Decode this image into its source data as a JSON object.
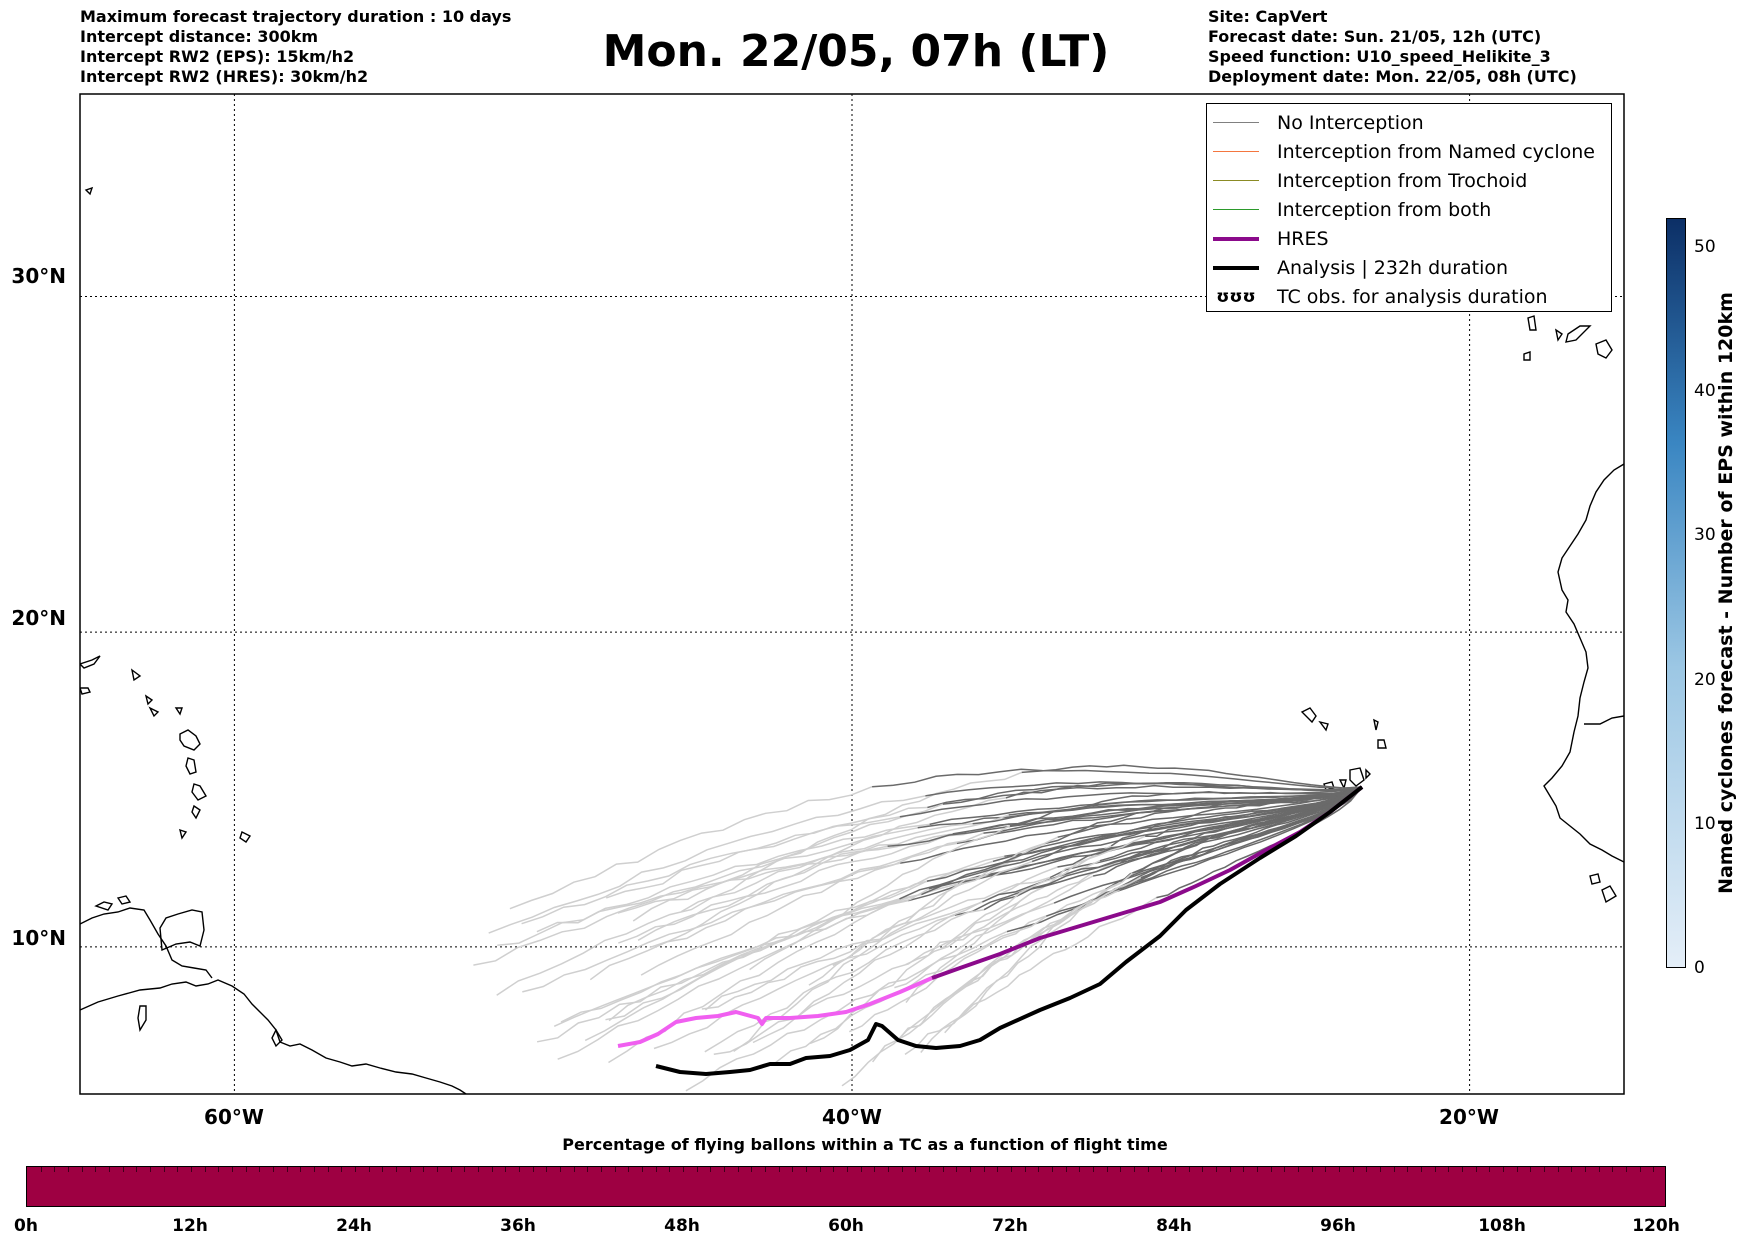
{
  "header": {
    "left_lines": [
      "Maximum forecast trajectory duration : 10 days",
      "Intercept distance: 300km",
      "Intercept RW2 (EPS):  15km/h2",
      "Intercept RW2 (HRES): 30km/h2"
    ],
    "right_lines": [
      "Site: CapVert",
      "Forecast date: Sun. 21/05, 12h (UTC)",
      "Speed function: U10_speed_Helikite_3",
      "Deployment date: Mon. 22/05, 08h (UTC)"
    ],
    "title": "Mon. 22/05, 07h (LT)"
  },
  "map": {
    "lat_labels": [
      "30°N",
      "20°N",
      "10°N"
    ],
    "lon_labels": [
      "60°W",
      "40°W",
      "20°W"
    ],
    "extent": {
      "lon_min": -65,
      "lon_max": -15,
      "lat_min": 5.2,
      "lat_max": 35.6
    },
    "gridlines": true
  },
  "legend": {
    "items": [
      {
        "label": "No Interception",
        "color": "#808080",
        "kind": "thin"
      },
      {
        "label": "Interception from Named cyclone",
        "color": "#f4763f",
        "kind": "thin"
      },
      {
        "label": "Interception from Trochoid",
        "color": "#8b8b24",
        "kind": "thin"
      },
      {
        "label": "Interception from both",
        "color": "#2b9a2b",
        "kind": "thin"
      },
      {
        "label": "HRES",
        "color": "#8b0a8b",
        "kind": "thick"
      },
      {
        "label": "Analysis | 232h duration",
        "color": "#000000",
        "kind": "thick"
      },
      {
        "label": "TC obs. for analysis duration",
        "color": "#000000",
        "kind": "symbol",
        "symbol": "ʊʊʊ"
      }
    ]
  },
  "colorbar_right": {
    "label": "Named cyclones forecast - Number of EPS within 120km",
    "ticks": [
      "0",
      "10",
      "20",
      "30",
      "40",
      "50"
    ],
    "range": [
      0,
      52
    ],
    "colors": [
      "#e4eef8",
      "#0c2f66"
    ]
  },
  "colorbar_bottom": {
    "title": "Percentage of flying ballons within a TC as a function of flight time",
    "ticks": [
      "0h",
      "12h",
      "24h",
      "36h",
      "48h",
      "60h",
      "72h",
      "84h",
      "96h",
      "108h",
      "120h"
    ],
    "color": "#9e0042"
  },
  "colors": {
    "ens_light": "#cfcfcf",
    "ens_dark": "#6a6a6a",
    "hres": "#8b0a8b",
    "hres_early": "#f05ff0",
    "analysis": "#000000",
    "coast": "#000000"
  }
}
